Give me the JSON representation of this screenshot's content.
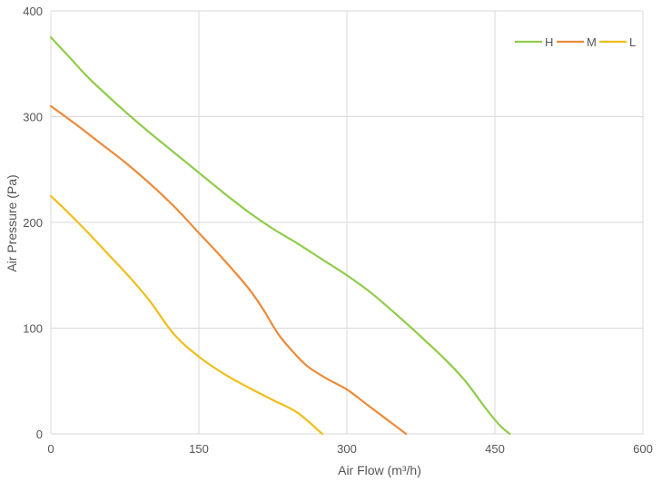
{
  "chart_data": {
    "type": "line",
    "title": "",
    "xlabel": "Air Flow  (m³/h)",
    "ylabel": "Air Pressure  (Pa)",
    "xlim": [
      0,
      600
    ],
    "ylim": [
      0,
      400
    ],
    "xticks": [
      0,
      150,
      300,
      450,
      600
    ],
    "yticks": [
      0,
      100,
      200,
      300,
      400
    ],
    "grid": true,
    "legend_position": "top-right",
    "series": [
      {
        "name": "H",
        "color": "#8fcc4a",
        "points": [
          [
            0,
            375
          ],
          [
            20,
            355
          ],
          [
            40,
            335
          ],
          [
            75,
            305
          ],
          [
            100,
            285
          ],
          [
            125,
            266
          ],
          [
            150,
            247
          ],
          [
            175,
            228
          ],
          [
            200,
            210
          ],
          [
            225,
            194
          ],
          [
            250,
            180
          ],
          [
            275,
            165
          ],
          [
            300,
            150
          ],
          [
            325,
            133
          ],
          [
            350,
            113
          ],
          [
            375,
            92
          ],
          [
            400,
            70
          ],
          [
            420,
            50
          ],
          [
            440,
            25
          ],
          [
            455,
            8
          ],
          [
            465,
            0
          ]
        ]
      },
      {
        "name": "M",
        "color": "#ed8a3a",
        "points": [
          [
            0,
            310
          ],
          [
            25,
            293
          ],
          [
            50,
            275
          ],
          [
            75,
            257
          ],
          [
            100,
            237
          ],
          [
            125,
            215
          ],
          [
            150,
            190
          ],
          [
            175,
            165
          ],
          [
            200,
            138
          ],
          [
            215,
            118
          ],
          [
            230,
            95
          ],
          [
            245,
            78
          ],
          [
            260,
            64
          ],
          [
            280,
            52
          ],
          [
            300,
            42
          ],
          [
            320,
            28
          ],
          [
            340,
            14
          ],
          [
            360,
            0
          ]
        ]
      },
      {
        "name": "L",
        "color": "#f0be1a",
        "points": [
          [
            0,
            225
          ],
          [
            20,
            207
          ],
          [
            40,
            188
          ],
          [
            60,
            168
          ],
          [
            80,
            148
          ],
          [
            100,
            126
          ],
          [
            125,
            94
          ],
          [
            150,
            73
          ],
          [
            175,
            57
          ],
          [
            200,
            44
          ],
          [
            225,
            32
          ],
          [
            250,
            20
          ],
          [
            275,
            0
          ]
        ]
      }
    ]
  }
}
